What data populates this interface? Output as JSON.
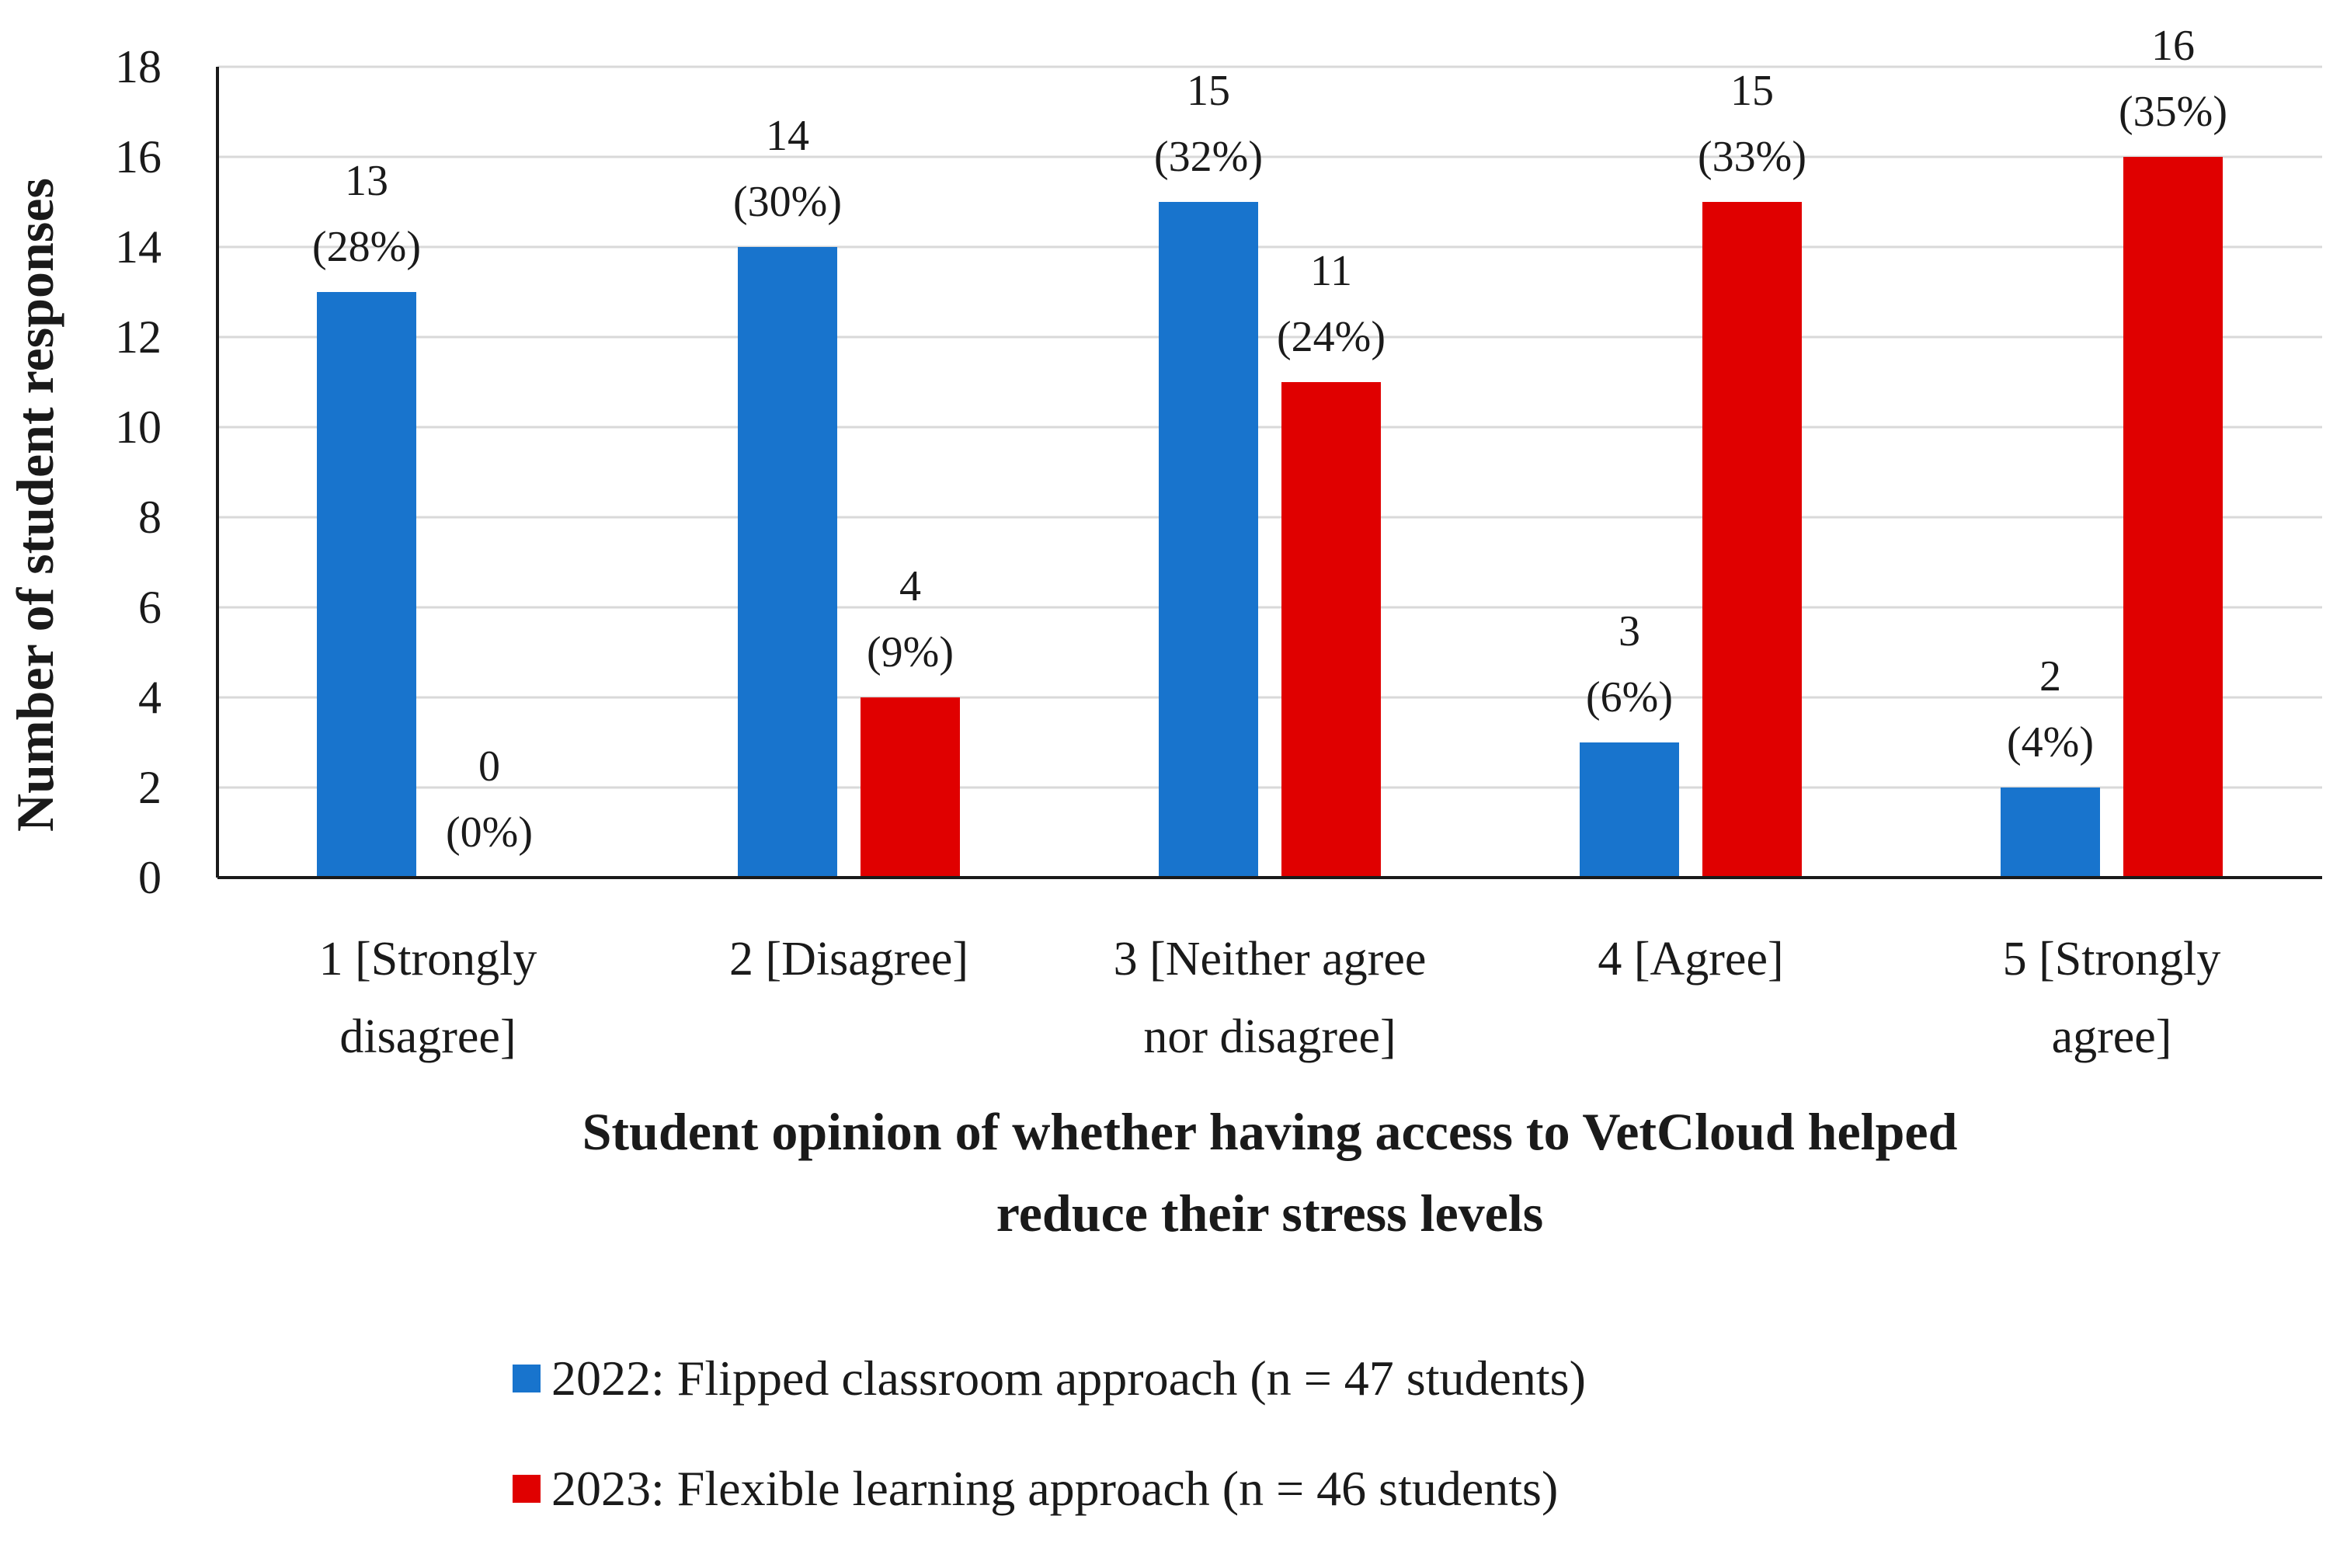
{
  "chart_data": {
    "type": "bar",
    "categories": [
      [
        "1 [Strongly",
        "disagree]"
      ],
      [
        "2 [Disagree]"
      ],
      [
        "3 [Neither agree",
        "nor disagree]"
      ],
      [
        "4 [Agree]"
      ],
      [
        "5 [Strongly",
        "agree]"
      ]
    ],
    "series": [
      {
        "name": "2022: Flipped classroom approach (n = 47 students)",
        "color": "#1874cd",
        "values": [
          13,
          14,
          15,
          3,
          2
        ],
        "labels": [
          [
            "13",
            "(28%)"
          ],
          [
            "14",
            "(30%)"
          ],
          [
            "15",
            "(32%)"
          ],
          [
            "3",
            "(6%)"
          ],
          [
            "2",
            "(4%)"
          ]
        ]
      },
      {
        "name": "2023: Flexible learning approach (n = 46 students)",
        "color": "#e00000",
        "values": [
          0,
          4,
          11,
          15,
          16
        ],
        "labels": [
          [
            "0",
            "(0%)"
          ],
          [
            "4",
            "(9%)"
          ],
          [
            "11",
            "(24%)"
          ],
          [
            "15",
            "(33%)"
          ],
          [
            "16",
            "(35%)"
          ]
        ]
      }
    ],
    "ylabel": "Number of student responses",
    "xlabel": [
      "Student opinion of whether having access to VetCloud helped",
      "reduce their stress levels"
    ],
    "ylim": [
      0,
      18
    ],
    "yticks": [
      0,
      2,
      4,
      6,
      8,
      10,
      12,
      14,
      16,
      18
    ],
    "grid": true,
    "legend_position": "bottom"
  }
}
